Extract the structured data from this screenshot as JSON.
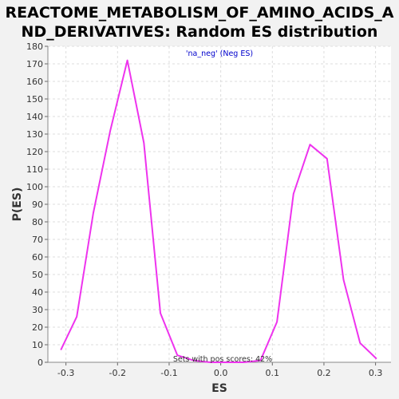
{
  "chart_data": {
    "type": "line",
    "title_line1": "REACTOME_METABOLISM_OF_AMINO_ACIDS_A",
    "title_line2": "ND_DERIVATIVES: Random ES distribution",
    "xlabel": "ES",
    "ylabel": "P(ES)",
    "xlim": [
      -0.335,
      0.33
    ],
    "ylim": [
      0,
      180
    ],
    "xticks": [
      -0.3,
      -0.2,
      -0.1,
      0.0,
      0.1,
      0.2,
      0.3
    ],
    "xtick_labels": [
      "-0.3",
      "-0.2",
      "-0.1",
      "0.0",
      "0.1",
      "0.2",
      "0.3"
    ],
    "yticks": [
      0,
      10,
      20,
      30,
      40,
      50,
      60,
      70,
      80,
      90,
      100,
      110,
      120,
      130,
      140,
      150,
      160,
      170,
      180
    ],
    "grid": true,
    "legend_position": "top-center",
    "annotation": "Sets with pos scores: 42%",
    "series": [
      {
        "name": "'na_neg' (Neg ES)",
        "color": "#ee33ee",
        "x": [
          -0.31,
          -0.279,
          -0.247,
          -0.214,
          -0.181,
          -0.149,
          -0.117,
          -0.084,
          -0.052,
          -0.02,
          0.012,
          0.045,
          0.077,
          0.109,
          0.141,
          0.173,
          0.206,
          0.238,
          0.27,
          0.302
        ],
        "y": [
          7,
          26,
          85,
          132,
          172,
          125,
          28,
          4,
          1,
          0,
          0,
          0,
          1,
          23,
          96,
          124,
          116,
          47,
          11,
          2
        ]
      }
    ]
  }
}
